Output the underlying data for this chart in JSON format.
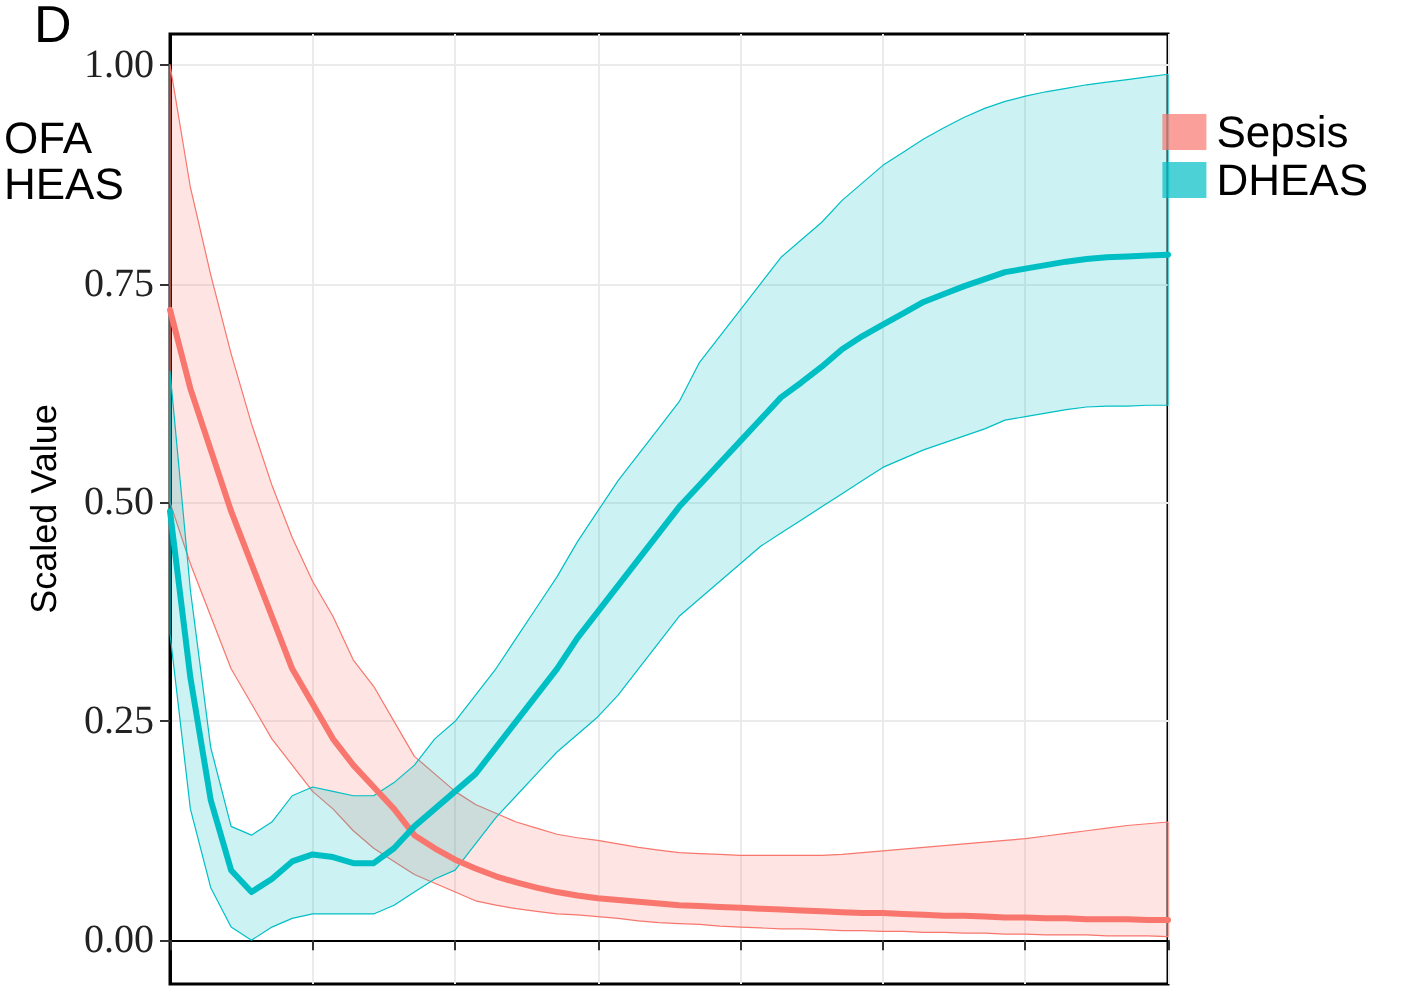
{
  "chart_data": {
    "type": "line",
    "title": "D",
    "annotations": [
      "OFA",
      "HEAS"
    ],
    "ylabel": "Scaled Value",
    "categories": [
      null,
      null,
      null,
      null,
      null,
      null,
      null,
      null,
      null,
      null,
      null,
      null,
      null,
      null,
      null,
      null,
      null,
      null,
      null,
      null,
      null,
      null,
      null,
      null,
      null,
      null,
      null,
      null,
      null,
      null,
      null,
      null,
      null,
      null,
      null,
      null,
      null,
      null,
      null,
      null,
      null,
      null,
      null,
      null,
      null,
      null,
      null,
      null,
      null,
      null
    ],
    "ylim": [
      -0.05,
      1.035
    ],
    "yticks": [
      {
        "value": 0,
        "label": "0.00"
      },
      {
        "value": 0.25,
        "label": "0.25"
      },
      {
        "value": 0.5,
        "label": "0.50"
      },
      {
        "value": 0.75,
        "label": "0.75"
      },
      {
        "value": 1,
        "label": "1.00"
      }
    ],
    "grid": true,
    "legend": "right",
    "marker": "none",
    "line_style": "solid",
    "series": [
      {
        "name": "Sepsis",
        "color": "#f8766d",
        "values": [
          0.72,
          0.63,
          0.56,
          0.49,
          0.43,
          0.37,
          0.31,
          0.27,
          0.23,
          0.2,
          0.175,
          0.15,
          0.12,
          0.105,
          0.092,
          0.082,
          0.073,
          0.066,
          0.06,
          0.055,
          0.051,
          0.048,
          0.046,
          0.044,
          0.042,
          0.04,
          0.039,
          0.038,
          0.037,
          0.036,
          0.035,
          0.034,
          0.033,
          0.032,
          0.031,
          0.031,
          0.03,
          0.029,
          0.028,
          0.028,
          0.027,
          0.026,
          0.026,
          0.025,
          0.025,
          0.024,
          0.024,
          0.024,
          0.023,
          0.023
        ],
        "lower": [
          0.5,
          0.43,
          0.37,
          0.31,
          0.27,
          0.23,
          0.2,
          0.17,
          0.15,
          0.125,
          0.105,
          0.09,
          0.075,
          0.065,
          0.055,
          0.045,
          0.04,
          0.036,
          0.033,
          0.03,
          0.029,
          0.027,
          0.025,
          0.022,
          0.02,
          0.019,
          0.018,
          0.016,
          0.015,
          0.014,
          0.013,
          0.013,
          0.012,
          0.011,
          0.011,
          0.01,
          0.01,
          0.009,
          0.009,
          0.008,
          0.008,
          0.007,
          0.007,
          0.006,
          0.006,
          0.006,
          0.005,
          0.005,
          0.005,
          0.004
        ],
        "upper": [
          1.0,
          0.86,
          0.76,
          0.67,
          0.59,
          0.52,
          0.46,
          0.41,
          0.37,
          0.32,
          0.29,
          0.25,
          0.21,
          0.19,
          0.17,
          0.155,
          0.145,
          0.135,
          0.128,
          0.121,
          0.117,
          0.114,
          0.11,
          0.106,
          0.103,
          0.1,
          0.099,
          0.098,
          0.097,
          0.097,
          0.097,
          0.097,
          0.097,
          0.098,
          0.1,
          0.102,
          0.104,
          0.106,
          0.108,
          0.11,
          0.112,
          0.114,
          0.116,
          0.119,
          0.122,
          0.125,
          0.128,
          0.131,
          0.133,
          0.135
        ]
      },
      {
        "name": "DHEAS",
        "color": "#00bfc4",
        "values": [
          0.49,
          0.3,
          0.16,
          0.08,
          0.055,
          0.07,
          0.09,
          0.098,
          0.095,
          0.088,
          0.088,
          0.105,
          0.13,
          0.15,
          0.17,
          0.19,
          0.22,
          0.25,
          0.28,
          0.31,
          0.345,
          0.375,
          0.405,
          0.435,
          0.465,
          0.495,
          0.52,
          0.545,
          0.57,
          0.595,
          0.62,
          0.637,
          0.655,
          0.675,
          0.69,
          0.703,
          0.716,
          0.729,
          0.738,
          0.747,
          0.755,
          0.763,
          0.767,
          0.771,
          0.775,
          0.778,
          0.78,
          0.781,
          0.782,
          0.783
        ],
        "lower": [
          0.35,
          0.15,
          0.06,
          0.015,
          0.0,
          0.015,
          0.025,
          0.03,
          0.03,
          0.03,
          0.03,
          0.04,
          0.055,
          0.07,
          0.08,
          0.11,
          0.14,
          0.165,
          0.19,
          0.215,
          0.235,
          0.255,
          0.28,
          0.31,
          0.34,
          0.37,
          0.39,
          0.41,
          0.43,
          0.45,
          0.465,
          0.48,
          0.495,
          0.51,
          0.525,
          0.54,
          0.55,
          0.56,
          0.568,
          0.576,
          0.584,
          0.594,
          0.598,
          0.602,
          0.606,
          0.609,
          0.61,
          0.61,
          0.611,
          0.611
        ],
        "upper": [
          0.65,
          0.4,
          0.22,
          0.13,
          0.12,
          0.135,
          0.165,
          0.175,
          0.17,
          0.165,
          0.165,
          0.18,
          0.2,
          0.23,
          0.25,
          0.28,
          0.31,
          0.345,
          0.38,
          0.415,
          0.455,
          0.49,
          0.525,
          0.555,
          0.585,
          0.615,
          0.66,
          0.69,
          0.72,
          0.75,
          0.78,
          0.8,
          0.82,
          0.845,
          0.865,
          0.885,
          0.9,
          0.915,
          0.928,
          0.94,
          0.95,
          0.958,
          0.964,
          0.969,
          0.973,
          0.977,
          0.98,
          0.983,
          0.986,
          0.989
        ]
      }
    ]
  }
}
